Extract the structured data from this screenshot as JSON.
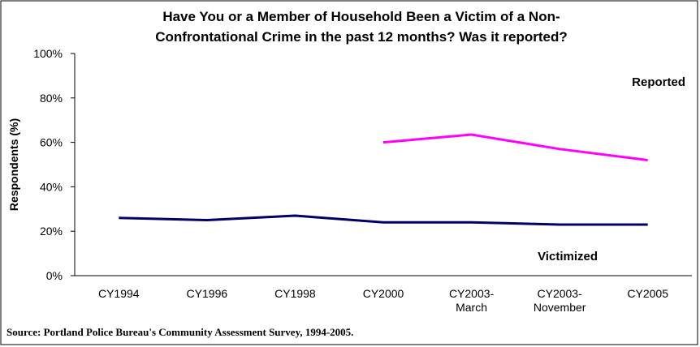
{
  "chart_data": {
    "type": "line",
    "title": "Have You or a Member of Household Been a Victim of a Non-\nConfrontational Crime in the past 12 months? Was it reported?",
    "ylabel": "Respondents (%)",
    "source": "Source: Portland Police Bureau's Community Assessment Survey, 1994-2005.",
    "categories": [
      "CY1994",
      "CY1996",
      "CY1998",
      "CY2000",
      "CY2003-\nMarch",
      "CY2003-\nNovember",
      "CY2005"
    ],
    "series": [
      {
        "name": "Reported",
        "color": "#ff00ff",
        "values": [
          null,
          null,
          null,
          60,
          63.5,
          57,
          52
        ]
      },
      {
        "name": "Victimized",
        "color": "#000066",
        "values": [
          26,
          25,
          27,
          24,
          24,
          23,
          23
        ]
      }
    ],
    "ylim": [
      0,
      100
    ],
    "yticks": [
      {
        "value": 0,
        "label": "0%"
      },
      {
        "value": 20,
        "label": "20%"
      },
      {
        "value": 40,
        "label": "40%"
      },
      {
        "value": 60,
        "label": "60%"
      },
      {
        "value": 80,
        "label": "80%"
      },
      {
        "value": 100,
        "label": "100%"
      }
    ],
    "grid": false
  }
}
